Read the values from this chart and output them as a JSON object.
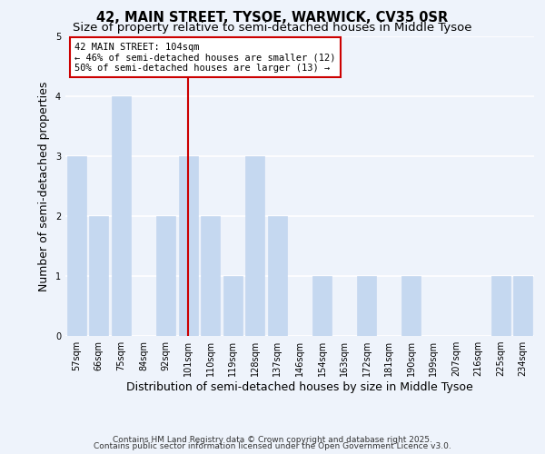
{
  "title": "42, MAIN STREET, TYSOE, WARWICK, CV35 0SR",
  "subtitle": "Size of property relative to semi-detached houses in Middle Tysoe",
  "xlabel": "Distribution of semi-detached houses by size in Middle Tysoe",
  "ylabel": "Number of semi-detached properties",
  "bin_labels": [
    "57sqm",
    "66sqm",
    "75sqm",
    "84sqm",
    "92sqm",
    "101sqm",
    "110sqm",
    "119sqm",
    "128sqm",
    "137sqm",
    "146sqm",
    "154sqm",
    "163sqm",
    "172sqm",
    "181sqm",
    "190sqm",
    "199sqm",
    "207sqm",
    "216sqm",
    "225sqm",
    "234sqm"
  ],
  "values": [
    3,
    2,
    4,
    0,
    2,
    3,
    2,
    1,
    3,
    2,
    0,
    1,
    0,
    1,
    0,
    1,
    0,
    0,
    0,
    1,
    1
  ],
  "bar_color": "#c5d8f0",
  "highlight_bar_index": 5,
  "highlight_line_color": "#cc0000",
  "annotation_box_text": "42 MAIN STREET: 104sqm\n← 46% of semi-detached houses are smaller (12)\n50% of semi-detached houses are larger (13) →",
  "ylim": [
    0,
    5
  ],
  "yticks": [
    0,
    1,
    2,
    3,
    4,
    5
  ],
  "footer_line1": "Contains HM Land Registry data © Crown copyright and database right 2025.",
  "footer_line2": "Contains public sector information licensed under the Open Government Licence v3.0.",
  "background_color": "#eef3fb",
  "grid_color": "#ffffff",
  "title_fontsize": 10.5,
  "subtitle_fontsize": 9.5,
  "axis_label_fontsize": 9,
  "tick_fontsize": 7,
  "annotation_fontsize": 7.5,
  "footer_fontsize": 6.5
}
